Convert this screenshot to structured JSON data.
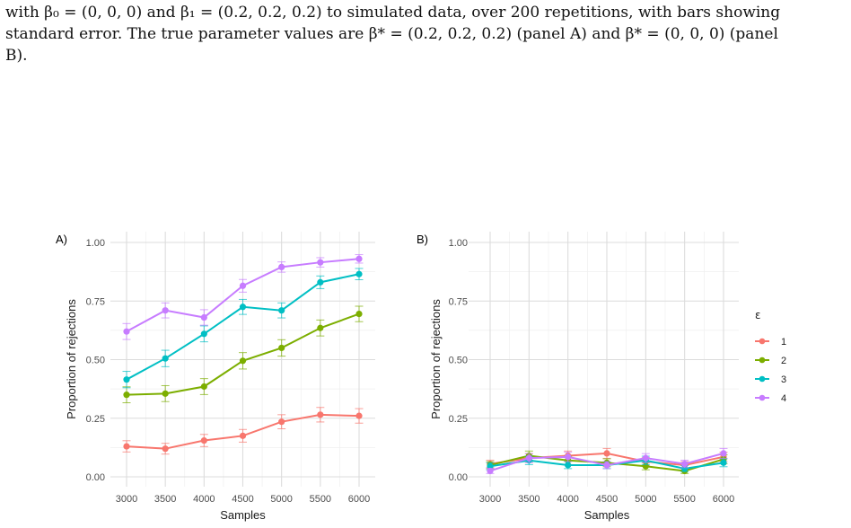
{
  "caption": {
    "line1": "with β₀ = (0, 0, 0) and β₁ = (0.2, 0.2, 0.2) to simulated data, over 200 repetitions, with bars showing",
    "line2": "standard error. The true parameter values are β* = (0.2, 0.2, 0.2) (panel A) and β* = (0, 0, 0) (panel",
    "line3": "B)."
  },
  "colors": {
    "1": "#f8766d",
    "2": "#7cae00",
    "3": "#00bfc4",
    "4": "#c77cff"
  },
  "chart_data": [
    {
      "type": "line",
      "panel_label": "A)",
      "xlabel": "Samples",
      "ylabel": "Proportion of rejections",
      "x": [
        3000,
        3500,
        4000,
        4500,
        5000,
        5500,
        6000
      ],
      "xticks": [
        "3000",
        "3500",
        "4000",
        "4500",
        "5000",
        "5500",
        "6000"
      ],
      "yticks": [
        "0.00",
        "0.25",
        "0.50",
        "0.75",
        "1.00"
      ],
      "ylim": [
        0,
        1
      ],
      "grid": true,
      "series": [
        {
          "name": "1",
          "values": [
            0.13,
            0.12,
            0.155,
            0.175,
            0.235,
            0.265,
            0.26
          ],
          "se": [
            0.024,
            0.023,
            0.026,
            0.027,
            0.03,
            0.031,
            0.031
          ]
        },
        {
          "name": "2",
          "values": [
            0.35,
            0.355,
            0.385,
            0.495,
            0.55,
            0.635,
            0.695
          ],
          "se": [
            0.034,
            0.034,
            0.034,
            0.035,
            0.035,
            0.034,
            0.033
          ]
        },
        {
          "name": "3",
          "values": [
            0.415,
            0.505,
            0.61,
            0.725,
            0.71,
            0.83,
            0.865
          ],
          "se": [
            0.035,
            0.035,
            0.034,
            0.032,
            0.032,
            0.027,
            0.024
          ]
        },
        {
          "name": "4",
          "values": [
            0.62,
            0.71,
            0.68,
            0.815,
            0.895,
            0.915,
            0.93
          ],
          "se": [
            0.034,
            0.032,
            0.033,
            0.027,
            0.022,
            0.02,
            0.018
          ]
        }
      ]
    },
    {
      "type": "line",
      "panel_label": "B)",
      "xlabel": "Samples",
      "ylabel": "Proportion of rejections",
      "x": [
        3000,
        3500,
        4000,
        4500,
        5000,
        5500,
        6000
      ],
      "xticks": [
        "3000",
        "3500",
        "4000",
        "4500",
        "5000",
        "5500",
        "6000"
      ],
      "yticks": [
        "0.00",
        "0.25",
        "0.50",
        "0.75",
        "1.00"
      ],
      "ylim": [
        0,
        1
      ],
      "grid": true,
      "legend": {
        "title": "ε",
        "placement": "right",
        "entries": [
          "1",
          "2",
          "3",
          "4"
        ]
      },
      "series": [
        {
          "name": "1",
          "values": [
            0.055,
            0.08,
            0.09,
            0.1,
            0.065,
            0.05,
            0.085
          ],
          "se": [
            0.016,
            0.019,
            0.02,
            0.021,
            0.017,
            0.015,
            0.02
          ]
        },
        {
          "name": "2",
          "values": [
            0.05,
            0.09,
            0.07,
            0.06,
            0.045,
            0.025,
            0.075
          ],
          "se": [
            0.015,
            0.02,
            0.018,
            0.017,
            0.015,
            0.011,
            0.019
          ]
        },
        {
          "name": "3",
          "values": [
            0.045,
            0.07,
            0.05,
            0.05,
            0.07,
            0.035,
            0.06
          ],
          "se": [
            0.015,
            0.018,
            0.015,
            0.015,
            0.018,
            0.013,
            0.017
          ]
        },
        {
          "name": "4",
          "values": [
            0.025,
            0.08,
            0.085,
            0.05,
            0.08,
            0.055,
            0.1
          ],
          "se": [
            0.011,
            0.019,
            0.02,
            0.015,
            0.019,
            0.016,
            0.021
          ]
        }
      ]
    }
  ]
}
